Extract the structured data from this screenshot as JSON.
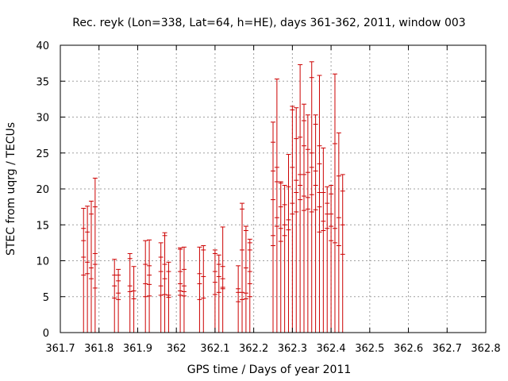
{
  "chart_data": {
    "type": "scatter",
    "title": "Rec. reyk (Lon=338, Lat=64, h=HE), days 361-362, 2011, window 003",
    "xlabel": "GPS time / Days of year 2011",
    "ylabel": "STEC from uqrg / TECUs",
    "xlim": [
      361.7,
      362.8
    ],
    "ylim": [
      0,
      40
    ],
    "xticks": [
      361.7,
      361.8,
      361.9,
      362.0,
      362.1,
      362.2,
      362.3,
      362.4,
      362.5,
      362.6,
      362.7,
      362.8
    ],
    "xtick_labels": [
      "361.7",
      "361.8",
      "361.9",
      "362",
      "362.1",
      "362.2",
      "362.3",
      "362.4",
      "362.5",
      "362.6",
      "362.7",
      "362.8"
    ],
    "yticks": [
      0,
      5,
      10,
      15,
      20,
      25,
      30,
      35,
      40
    ],
    "ytick_labels": [
      "0",
      "5",
      "10",
      "15",
      "20",
      "25",
      "30",
      "35",
      "40"
    ],
    "grid": true,
    "color": "#cc0000",
    "bars": [
      {
        "x": 361.76,
        "top": 17.3,
        "values": [
          8.0,
          10.5,
          12.8,
          14.5,
          17.3
        ]
      },
      {
        "x": 361.77,
        "top": 17.6,
        "values": [
          8.2,
          9.8,
          14.0,
          17.6
        ]
      },
      {
        "x": 361.78,
        "top": 18.3,
        "values": [
          7.5,
          9.0,
          16.5,
          18.3
        ]
      },
      {
        "x": 361.79,
        "top": 21.5,
        "values": [
          6.2,
          9.5,
          11.0,
          17.5,
          21.5
        ]
      },
      {
        "x": 361.84,
        "top": 10.2,
        "values": [
          4.8,
          6.5,
          8.0,
          10.2
        ]
      },
      {
        "x": 361.85,
        "top": 8.8,
        "values": [
          4.6,
          5.5,
          7.2,
          8.0,
          8.8
        ]
      },
      {
        "x": 361.88,
        "top": 11.0,
        "values": [
          5.7,
          6.5,
          10.3,
          11.0
        ]
      },
      {
        "x": 361.89,
        "top": 9.2,
        "values": [
          4.7,
          5.8,
          9.2
        ]
      },
      {
        "x": 361.92,
        "top": 12.8,
        "values": [
          5.0,
          6.8,
          9.5,
          12.8
        ]
      },
      {
        "x": 361.93,
        "top": 12.9,
        "values": [
          5.1,
          6.7,
          8.0,
          9.3,
          12.9
        ]
      },
      {
        "x": 361.96,
        "top": 12.5,
        "values": [
          5.2,
          6.5,
          8.5,
          10.5,
          12.5
        ]
      },
      {
        "x": 361.97,
        "top": 13.9,
        "values": [
          5.3,
          7.5,
          9.5,
          13.5,
          13.9
        ]
      },
      {
        "x": 361.98,
        "top": 9.8,
        "values": [
          4.9,
          5.2,
          8.5,
          9.8
        ]
      },
      {
        "x": 362.01,
        "top": 11.8,
        "values": [
          5.2,
          5.8,
          6.8,
          8.5,
          11.6,
          11.8
        ]
      },
      {
        "x": 362.02,
        "top": 11.9,
        "values": [
          5.1,
          5.7,
          6.5,
          8.8,
          11.9
        ]
      },
      {
        "x": 362.06,
        "top": 11.9,
        "values": [
          4.6,
          6.8,
          8.2,
          11.9
        ]
      },
      {
        "x": 362.07,
        "top": 12.1,
        "values": [
          4.8,
          7.8,
          11.5,
          12.1
        ]
      },
      {
        "x": 362.1,
        "top": 11.5,
        "values": [
          5.3,
          7.0,
          8.5,
          11.0,
          11.5
        ]
      },
      {
        "x": 362.11,
        "top": 10.8,
        "values": [
          5.6,
          7.8,
          9.5,
          10.8
        ]
      },
      {
        "x": 362.12,
        "top": 14.7,
        "values": [
          6.1,
          6.3,
          7.5,
          9.2,
          14.7
        ]
      },
      {
        "x": 362.16,
        "top": 9.3,
        "values": [
          4.3,
          5.6,
          6.1,
          9.3
        ]
      },
      {
        "x": 362.17,
        "top": 18.0,
        "values": [
          4.6,
          5.6,
          11.5,
          17.2,
          18.0
        ]
      },
      {
        "x": 362.18,
        "top": 14.8,
        "values": [
          4.7,
          5.5,
          9.0,
          14.2,
          14.8
        ]
      },
      {
        "x": 362.19,
        "top": 13.0,
        "values": [
          5.0,
          6.8,
          8.5,
          11.5,
          12.5,
          13.0
        ]
      },
      {
        "x": 362.25,
        "top": 29.3,
        "values": [
          12.1,
          13.5,
          18.5,
          22.5,
          26.5,
          29.3
        ]
      },
      {
        "x": 362.26,
        "top": 35.3,
        "values": [
          14.8,
          16.0,
          21.0,
          23.0,
          35.3
        ]
      },
      {
        "x": 362.27,
        "top": 21.0,
        "values": [
          12.7,
          14.5,
          17.5,
          20.8,
          21.0
        ]
      },
      {
        "x": 362.28,
        "top": 20.5,
        "values": [
          13.5,
          15.0,
          17.8,
          20.5
        ]
      },
      {
        "x": 362.29,
        "top": 24.8,
        "values": [
          14.3,
          15.7,
          20.3,
          24.8
        ]
      },
      {
        "x": 362.3,
        "top": 31.5,
        "values": [
          16.5,
          18.0,
          23.0,
          31.0,
          31.5
        ]
      },
      {
        "x": 362.31,
        "top": 31.3,
        "values": [
          16.8,
          19.5,
          21.2,
          27.0,
          31.3
        ]
      },
      {
        "x": 362.32,
        "top": 37.3,
        "values": [
          18.5,
          20.5,
          22.0,
          27.2,
          37.3
        ]
      },
      {
        "x": 362.33,
        "top": 31.8,
        "values": [
          17.0,
          19.0,
          22.0,
          26.0,
          29.5,
          31.8
        ]
      },
      {
        "x": 362.34,
        "top": 30.3,
        "values": [
          17.2,
          18.8,
          22.3,
          25.5,
          30.3
        ]
      },
      {
        "x": 362.35,
        "top": 37.7,
        "values": [
          16.8,
          19.2,
          23.0,
          25.0,
          35.5,
          37.7
        ]
      },
      {
        "x": 362.36,
        "top": 30.3,
        "values": [
          17.1,
          20.5,
          22.5,
          29.0,
          30.3
        ]
      },
      {
        "x": 362.37,
        "top": 35.8,
        "values": [
          14.0,
          17.5,
          19.5,
          23.5,
          26.0,
          35.8
        ]
      },
      {
        "x": 362.38,
        "top": 25.7,
        "values": [
          14.2,
          15.5,
          19.5,
          25.7
        ]
      },
      {
        "x": 362.39,
        "top": 20.3,
        "values": [
          14.5,
          16.5,
          18.0,
          20.3
        ]
      },
      {
        "x": 362.4,
        "top": 20.5,
        "values": [
          12.8,
          14.8,
          16.5,
          19.3,
          20.5
        ]
      },
      {
        "x": 362.41,
        "top": 36.0,
        "values": [
          12.5,
          14.5,
          26.3,
          36.0
        ]
      },
      {
        "x": 362.42,
        "top": 27.8,
        "values": [
          12.1,
          16.0,
          21.8,
          27.8
        ]
      },
      {
        "x": 362.43,
        "top": 22.0,
        "values": [
          10.9,
          15.0,
          19.7,
          22.0
        ]
      }
    ]
  }
}
